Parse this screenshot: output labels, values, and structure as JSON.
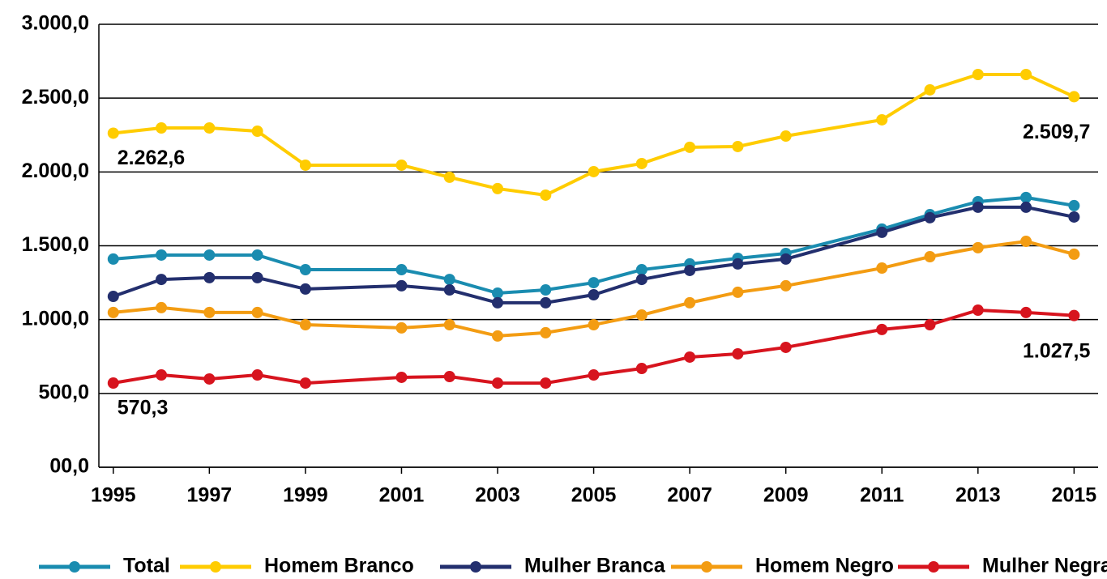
{
  "chart_data": {
    "type": "line",
    "x": [
      1995,
      1996,
      1997,
      1998,
      1999,
      2001,
      2002,
      2003,
      2004,
      2005,
      2006,
      2007,
      2008,
      2009,
      2011,
      2012,
      2013,
      2014,
      2015
    ],
    "series": [
      {
        "name": "Total",
        "color": "#1a8cb0",
        "values": [
          1410,
          1437,
          1437,
          1437,
          1338,
          1338,
          1272,
          1179,
          1201,
          1250,
          1338,
          1377,
          1415,
          1448,
          1613,
          1711,
          1799,
          1827,
          1772
        ]
      },
      {
        "name": "Homem Branco",
        "color": "#ffcc00",
        "values": [
          2262.6,
          2298,
          2298,
          2276,
          2046,
          2046,
          1964,
          1887,
          1843,
          2002,
          2057,
          2167,
          2172,
          2243,
          2353,
          2556,
          2660,
          2660,
          2509.7
        ],
        "value_labels": [
          "2.262,6",
          null,
          null,
          null,
          null,
          null,
          null,
          null,
          null,
          null,
          null,
          null,
          null,
          null,
          null,
          null,
          null,
          null,
          "2.509,7"
        ]
      },
      {
        "name": "Mulher Branca",
        "color": "#232f6e",
        "values": [
          1157,
          1272,
          1284,
          1284,
          1207,
          1229,
          1201,
          1114,
          1114,
          1168,
          1272,
          1333,
          1377,
          1410,
          1591,
          1690,
          1761,
          1761,
          1695
        ]
      },
      {
        "name": "Homem Negro",
        "color": "#f39c12",
        "values": [
          1048,
          1081,
          1048,
          1048,
          965,
          944,
          965,
          889,
          911,
          965,
          1031,
          1114,
          1185,
          1229,
          1349,
          1426,
          1487,
          1530,
          1443
        ]
      },
      {
        "name": "Mulher Negra",
        "color": "#d7141e",
        "values": [
          570.3,
          625,
          598,
          625,
          570,
          609,
          614,
          570,
          570,
          625,
          669,
          746,
          768,
          812,
          933,
          965,
          1064,
          1048,
          1027.5
        ],
        "value_labels": [
          "570,3",
          null,
          null,
          null,
          null,
          null,
          null,
          null,
          null,
          null,
          null,
          null,
          null,
          null,
          null,
          null,
          null,
          null,
          "1.027,5"
        ]
      }
    ],
    "xlim": [
      1994.7,
      2015.5
    ],
    "xticks": [
      1995,
      1997,
      1999,
      2001,
      2003,
      2005,
      2007,
      2009,
      2011,
      2013,
      2015
    ],
    "ylim": [
      0,
      3000
    ],
    "yticks": [
      {
        "value": 0,
        "label": "00,0"
      },
      {
        "value": 500,
        "label": "500,0"
      },
      {
        "value": 1000,
        "label": "1.000,0"
      },
      {
        "value": 1500,
        "label": "1.500,0"
      },
      {
        "value": 2000,
        "label": "2.000,0"
      },
      {
        "value": 2500,
        "label": "2.500,0"
      },
      {
        "value": 3000,
        "label": "3.000,0"
      }
    ],
    "grid": true,
    "legend": "bottom"
  }
}
